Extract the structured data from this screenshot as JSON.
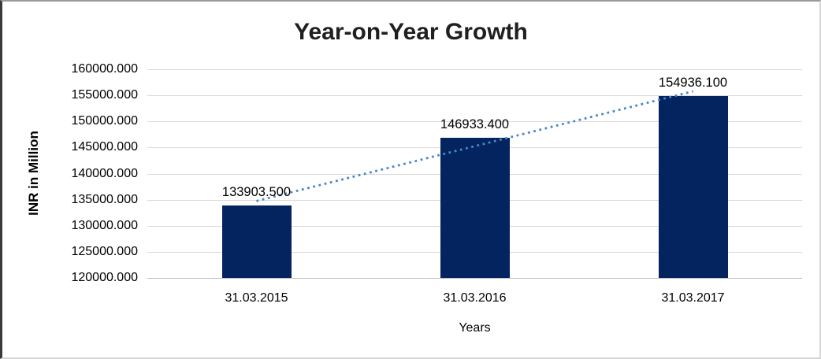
{
  "chart_data": {
    "type": "bar",
    "title": "Year-on-Year Growth",
    "xlabel": "Years",
    "ylabel": "INR in Million",
    "categories": [
      "31.03.2015",
      "31.03.2016",
      "31.03.2017"
    ],
    "values": [
      133903.5,
      146933.4,
      154936.1
    ],
    "data_labels": [
      "133903.500",
      "146933.400",
      "154936.100"
    ],
    "y_ticks": [
      "160000.000",
      "155000.000",
      "150000.000",
      "145000.000",
      "140000.000",
      "135000.000",
      "130000.000",
      "125000.000",
      "120000.000"
    ],
    "ylim": [
      120000,
      160000
    ],
    "y_step": 5000,
    "grid": true,
    "legend": "none",
    "trendline": {
      "type": "linear",
      "style": "dotted"
    },
    "colors": {
      "bar": "#03245e",
      "trendline": "#4a86c8",
      "gridline": "#d9d9d9",
      "title": "#1f1f1f",
      "text": "#000000"
    }
  }
}
